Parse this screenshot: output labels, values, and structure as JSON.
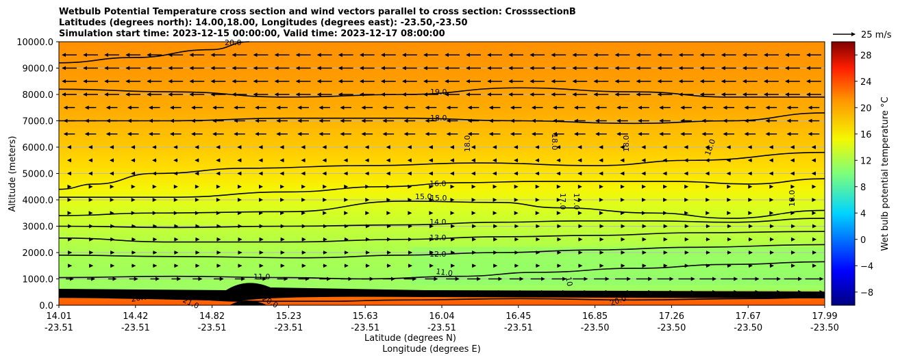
{
  "chart_data": {
    "type": "contour",
    "title_lines": [
      "Wetbulb Potential Temperature cross section and wind vectors parallel to cross section: CrosssectionB",
      "Latitudes (degrees north): 14.00,18.00, Longitudes (degrees east): -23.50,-23.50",
      "Simulation start time: 2023-12-15 00:00:00, Valid time: 2023-12-17 08:00:00"
    ],
    "ylabel": "Altitude (meters)",
    "xlabel_lat": "Latitude (degrees N)",
    "xlabel_lon": "Longitude (degrees E)",
    "ylim": [
      0,
      10000
    ],
    "y_ticks": [
      "0.0",
      "1000.0",
      "2000.0",
      "3000.0",
      "4000.0",
      "5000.0",
      "6000.0",
      "7000.0",
      "8000.0",
      "9000.0",
      "10000.0"
    ],
    "x_ticks": [
      {
        "lat": "14.01",
        "lon": "-23.51"
      },
      {
        "lat": "14.42",
        "lon": "-23.51"
      },
      {
        "lat": "14.82",
        "lon": "-23.51"
      },
      {
        "lat": "15.23",
        "lon": "-23.51"
      },
      {
        "lat": "15.63",
        "lon": "-23.51"
      },
      {
        "lat": "16.04",
        "lon": "-23.51"
      },
      {
        "lat": "16.45",
        "lon": "-23.51"
      },
      {
        "lat": "16.85",
        "lon": "-23.50"
      },
      {
        "lat": "17.26",
        "lon": "-23.50"
      },
      {
        "lat": "17.67",
        "lon": "-23.50"
      },
      {
        "lat": "17.99",
        "lon": "-23.50"
      }
    ],
    "colorbar": {
      "label": "Wet bulb potential temperature °C",
      "range": [
        -10,
        30
      ],
      "ticks": [
        "-8",
        "-4",
        "0",
        "4",
        "8",
        "12",
        "16",
        "20",
        "24",
        "28"
      ]
    },
    "quiver_key": "25 m/s",
    "contour_labels": [
      "19.0",
      "18.0",
      "18.0",
      "18.0",
      "18.0",
      "18.0",
      "18.0",
      "16.0",
      "15.0",
      "15.0",
      "14.0",
      "13.0",
      "12.0",
      "11.0",
      "11.0",
      "17.0",
      "17.0",
      "10",
      "20.0",
      "21.0",
      "20.0",
      "20.0",
      "20.0"
    ],
    "contour_lines": [
      {
        "level": 11,
        "points": [
          [
            14.01,
            1050
          ],
          [
            14.6,
            1100
          ],
          [
            15.2,
            1050
          ],
          [
            15.6,
            1000
          ],
          [
            16.1,
            1100
          ],
          [
            16.5,
            1250
          ],
          [
            17.0,
            1400
          ],
          [
            17.5,
            1550
          ],
          [
            17.99,
            1650
          ]
        ]
      },
      {
        "level": 12,
        "points": [
          [
            14.01,
            1900
          ],
          [
            14.6,
            1850
          ],
          [
            15.3,
            1800
          ],
          [
            15.8,
            1900
          ],
          [
            16.3,
            2000
          ],
          [
            16.8,
            2100
          ],
          [
            17.3,
            2200
          ],
          [
            17.99,
            2300
          ]
        ]
      },
      {
        "level": 13,
        "points": [
          [
            14.01,
            2550
          ],
          [
            14.6,
            2400
          ],
          [
            15.2,
            2400
          ],
          [
            15.8,
            2500
          ],
          [
            16.3,
            2600
          ],
          [
            16.8,
            2650
          ],
          [
            17.3,
            2750
          ],
          [
            17.99,
            2800
          ]
        ]
      },
      {
        "level": 14,
        "points": [
          [
            14.01,
            3000
          ],
          [
            14.6,
            2950
          ],
          [
            15.2,
            3000
          ],
          [
            15.8,
            3050
          ],
          [
            16.3,
            3150
          ],
          [
            16.7,
            3200
          ],
          [
            17.1,
            3200
          ],
          [
            17.5,
            3150
          ],
          [
            17.99,
            3300
          ]
        ]
      },
      {
        "level": 15,
        "points": [
          [
            14.01,
            3400
          ],
          [
            14.5,
            3500
          ],
          [
            15.2,
            3550
          ],
          [
            15.8,
            3950
          ],
          [
            16.3,
            3900
          ],
          [
            16.6,
            3700
          ],
          [
            17.1,
            3500
          ],
          [
            17.5,
            3300
          ],
          [
            17.99,
            3600
          ]
        ]
      },
      {
        "level": 16,
        "points": [
          [
            14.01,
            4100
          ],
          [
            14.6,
            4100
          ],
          [
            15.2,
            4300
          ],
          [
            15.7,
            4500
          ],
          [
            16.1,
            4650
          ],
          [
            16.5,
            4700
          ],
          [
            17.2,
            4700
          ],
          [
            17.6,
            4600
          ],
          [
            17.99,
            4800
          ]
        ]
      },
      {
        "level": 17,
        "points": [
          [
            14.01,
            4400
          ],
          [
            14.2,
            4600
          ],
          [
            14.5,
            5000
          ],
          [
            15.0,
            5200
          ],
          [
            15.6,
            5300
          ],
          [
            16.2,
            5400
          ],
          [
            16.8,
            5300
          ],
          [
            17.3,
            5500
          ],
          [
            17.99,
            5800
          ]
        ]
      },
      {
        "level": 18,
        "points": [
          [
            14.01,
            7000
          ],
          [
            14.6,
            7000
          ],
          [
            15.2,
            7100
          ],
          [
            15.8,
            7100
          ],
          [
            16.4,
            7000
          ],
          [
            17.0,
            6900
          ],
          [
            17.5,
            7000
          ],
          [
            17.99,
            7300
          ]
        ]
      },
      {
        "level": 19,
        "points": [
          [
            14.01,
            8200
          ],
          [
            14.6,
            8100
          ],
          [
            15.2,
            7900
          ],
          [
            15.8,
            8000
          ],
          [
            16.4,
            8250
          ],
          [
            17.0,
            8100
          ],
          [
            17.5,
            7900
          ],
          [
            17.99,
            7900
          ]
        ]
      },
      {
        "level": 20,
        "points": [
          [
            14.01,
            9200
          ],
          [
            14.4,
            9400
          ],
          [
            14.8,
            9700
          ],
          [
            15.0,
            10000
          ]
        ]
      },
      {
        "level": 20,
        "points": [
          [
            14.01,
            300
          ],
          [
            14.6,
            250
          ],
          [
            15.0,
            150
          ],
          [
            15.4,
            150
          ],
          [
            15.8,
            200
          ],
          [
            16.4,
            250
          ],
          [
            17.0,
            200
          ],
          [
            17.6,
            250
          ],
          [
            17.99,
            300
          ]
        ]
      }
    ],
    "wind": "vectors parallel to cross section; mostly easterly (pointing left) aloft, weak westerly near surface"
  }
}
